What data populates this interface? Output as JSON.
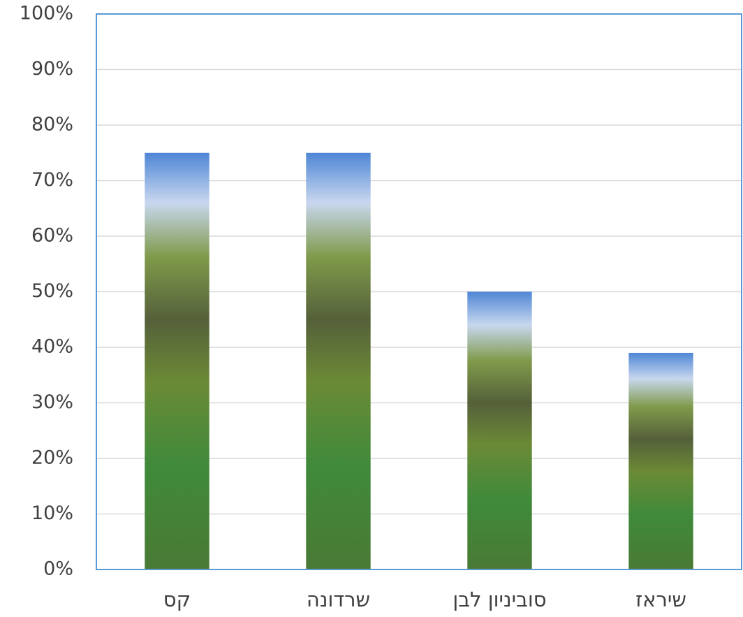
{
  "chart_data": {
    "type": "bar",
    "categories": [
      "קס",
      "שרדונה",
      "סוביניון לבן",
      "שיראז"
    ],
    "values": [
      75,
      75,
      50,
      39
    ],
    "ylim": [
      0,
      100
    ],
    "yticks": [
      {
        "value": 0,
        "label": "0%"
      },
      {
        "value": 10,
        "label": "10%"
      },
      {
        "value": 20,
        "label": "20%"
      },
      {
        "value": 30,
        "label": "30%"
      },
      {
        "value": 40,
        "label": "40%"
      },
      {
        "value": 50,
        "label": "50%"
      },
      {
        "value": 60,
        "label": "60%"
      },
      {
        "value": 70,
        "label": "70%"
      },
      {
        "value": 80,
        "label": "80%"
      },
      {
        "value": 90,
        "label": "90%"
      },
      {
        "value": 100,
        "label": "100%"
      }
    ],
    "grid": true
  }
}
